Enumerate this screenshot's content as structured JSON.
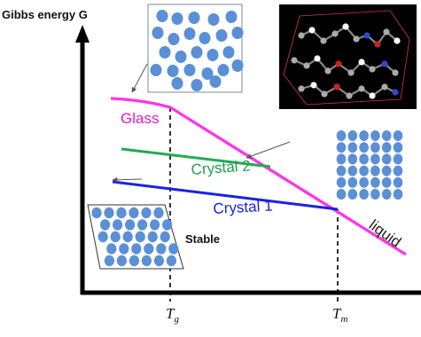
{
  "axes": {
    "y_title": "Gibbs energy G",
    "x_ticks": [
      {
        "main": "T",
        "sub": "g"
      },
      {
        "main": "T",
        "sub": "m"
      }
    ]
  },
  "curves": {
    "glass_label": "Glass",
    "crystal2_label": "Crystal 2",
    "crystal1_label": "Crystal 1",
    "liquid_label": "liquid"
  },
  "annotations": {
    "stable_label": "Stable"
  },
  "colors": {
    "glass": "#ff33e6",
    "glass_text": "#e619d2",
    "crystal2": "#22aa55",
    "crystal1": "#1a22e6",
    "molecule_fill": "#5b8fd6",
    "axis": "#000000"
  },
  "icons": {
    "glass_packing": "random-circle-packing-icon",
    "liquid_packing": "square-grid-packing-icon",
    "stable_packing": "hexagonal-packing-icon",
    "molecular_model": "molecular-crystal-render-icon"
  }
}
